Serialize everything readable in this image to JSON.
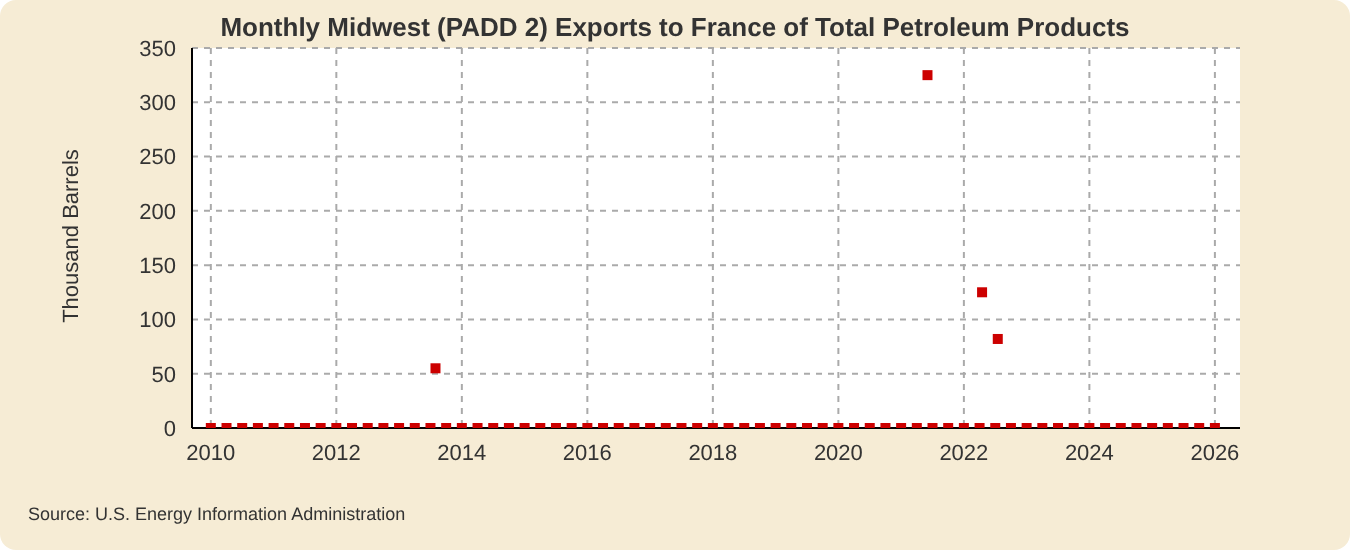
{
  "chart_data": {
    "type": "scatter",
    "title": "Monthly Midwest (PADD 2) Exports to France of Total Petroleum Products",
    "ylabel": "Thousand Barrels",
    "annotations": [
      "Source: U.S. Energy Information Administration"
    ],
    "x": [
      2010,
      2010.25,
      2010.5,
      2010.75,
      2011,
      2011.25,
      2011.5,
      2011.75,
      2012,
      2012.25,
      2012.5,
      2012.75,
      2013,
      2013.25,
      2013.5,
      2013.58,
      2013.75,
      2014,
      2014.25,
      2014.5,
      2014.75,
      2015,
      2015.25,
      2015.5,
      2015.75,
      2016,
      2016.25,
      2016.5,
      2016.75,
      2017,
      2017.25,
      2017.5,
      2017.75,
      2018,
      2018.25,
      2018.5,
      2018.75,
      2019,
      2019.25,
      2019.5,
      2019.75,
      2020,
      2020.25,
      2020.5,
      2020.75,
      2021,
      2021.25,
      2021.42,
      2021.5,
      2021.75,
      2022,
      2022.25,
      2022.29,
      2022.5,
      2022.54,
      2022.75,
      2023,
      2023.25,
      2023.5,
      2023.75,
      2024,
      2024.25,
      2024.5,
      2024.75,
      2025,
      2025.25,
      2025.5,
      2025.75,
      2026
    ],
    "series": [
      {
        "color": "#cc0000",
        "values": [
          0,
          0,
          0,
          0,
          0,
          0,
          0,
          0,
          0,
          0,
          0,
          0,
          0,
          0,
          0,
          55,
          0,
          0,
          0,
          0,
          0,
          0,
          0,
          0,
          0,
          0,
          0,
          0,
          0,
          0,
          0,
          0,
          0,
          0,
          0,
          0,
          0,
          0,
          0,
          0,
          0,
          0,
          0,
          0,
          0,
          0,
          0,
          325,
          0,
          0,
          0,
          0,
          125,
          0,
          82,
          0,
          0,
          0,
          0,
          0,
          0,
          0,
          0,
          0,
          0,
          0,
          0,
          0,
          0
        ]
      }
    ],
    "xlim": [
      2009.7,
      2026.4
    ],
    "xticks": [
      2010,
      2012,
      2014,
      2016,
      2018,
      2020,
      2022,
      2024,
      2026
    ],
    "ylim": [
      0,
      350
    ],
    "yticks": [
      0,
      50,
      100,
      150,
      200,
      250,
      300,
      350
    ],
    "grid": true,
    "marker": "square"
  }
}
